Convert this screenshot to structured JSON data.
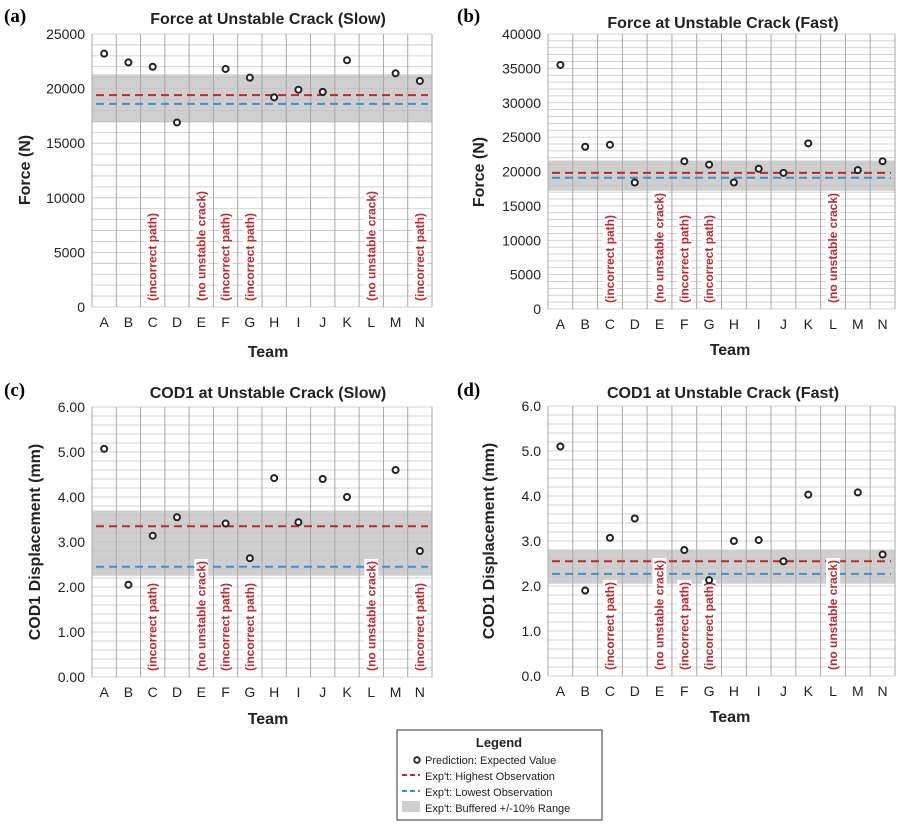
{
  "colors": {
    "highest": "#c0282d",
    "lowest": "#3f8fd2",
    "band": "#cfcfcf",
    "grid": "#c4c4c4",
    "marker": "#222222",
    "annotation": "#c0282d"
  },
  "chart_data": [
    {
      "label": "(a)",
      "type": "scatter",
      "title": "Force at Unstable Crack (Slow)",
      "xlabel": "Team",
      "ylabel": "Force (N)",
      "categories": [
        "A",
        "B",
        "C",
        "D",
        "E",
        "F",
        "G",
        "H",
        "I",
        "J",
        "K",
        "L",
        "M",
        "N"
      ],
      "ylim": [
        0,
        25000
      ],
      "yticks": [
        "0",
        "5000",
        "10000",
        "15000",
        "20000",
        "25000"
      ],
      "minor_step": 1000,
      "values": [
        23200,
        22400,
        22000,
        16900,
        null,
        21800,
        21000,
        19200,
        19900,
        19700,
        22600,
        null,
        21400,
        20700
      ],
      "highest": 19400,
      "lowest": 18600,
      "band": [
        16900,
        21300
      ],
      "annotations": [
        {
          "category": "C",
          "text": "(incorrect path)"
        },
        {
          "category": "E",
          "text": "(no unstable crack)"
        },
        {
          "category": "F",
          "text": "(incorrect path)"
        },
        {
          "category": "G",
          "text": "(incorrect path)"
        },
        {
          "category": "L",
          "text": "(no unstable crack)"
        },
        {
          "category": "N",
          "text": "(incorrect path)"
        }
      ]
    },
    {
      "label": "(b)",
      "type": "scatter",
      "title": "Force at Unstable Crack (Fast)",
      "xlabel": "Team",
      "ylabel": "Force (N)",
      "categories": [
        "A",
        "B",
        "C",
        "D",
        "E",
        "F",
        "G",
        "H",
        "I",
        "J",
        "K",
        "L",
        "M",
        "N"
      ],
      "ylim": [
        0,
        40000
      ],
      "yticks": [
        "0",
        "5000",
        "10000",
        "15000",
        "20000",
        "25000",
        "30000",
        "35000",
        "40000"
      ],
      "minor_step": 1000,
      "values": [
        35500,
        23600,
        23900,
        18400,
        null,
        21500,
        21000,
        18400,
        20400,
        19800,
        24100,
        null,
        20200,
        21500
      ],
      "highest": 19800,
      "lowest": 19100,
      "band": [
        17200,
        21600
      ],
      "annotations": [
        {
          "category": "C",
          "text": "(incorrect path)"
        },
        {
          "category": "E",
          "text": "(no unstable crack)"
        },
        {
          "category": "F",
          "text": "(incorrect path)"
        },
        {
          "category": "G",
          "text": "(incorrect path)"
        },
        {
          "category": "L",
          "text": "(no unstable crack)"
        }
      ]
    },
    {
      "label": "(c)",
      "type": "scatter",
      "title": "COD1 at Unstable Crack (Slow)",
      "xlabel": "Team",
      "ylabel": "COD1 Displacement (mm)",
      "categories": [
        "A",
        "B",
        "C",
        "D",
        "E",
        "F",
        "G",
        "H",
        "I",
        "J",
        "K",
        "L",
        "M",
        "N"
      ],
      "ylim": [
        0,
        6
      ],
      "yticks": [
        "0.00",
        "1.00",
        "2.00",
        "3.00",
        "4.00",
        "5.00",
        "6.00"
      ],
      "minor_step": 0.2,
      "values": [
        5.07,
        2.05,
        3.14,
        3.55,
        null,
        3.41,
        2.64,
        4.42,
        3.44,
        4.4,
        4.0,
        null,
        4.6,
        2.8
      ],
      "highest": 3.35,
      "lowest": 2.45,
      "band": [
        2.25,
        3.7
      ],
      "annotations": [
        {
          "category": "C",
          "text": "(incorrect path)"
        },
        {
          "category": "E",
          "text": "(no unstable crack)"
        },
        {
          "category": "F",
          "text": "(incorrect path)"
        },
        {
          "category": "G",
          "text": "(incorrect path)"
        },
        {
          "category": "L",
          "text": "(no unstable crack)"
        },
        {
          "category": "N",
          "text": "(incorrect path)"
        }
      ]
    },
    {
      "label": "(d)",
      "type": "scatter",
      "title": "COD1 at Unstable Crack (Fast)",
      "xlabel": "Team",
      "ylabel": "COD1 Displacement (mm)",
      "categories": [
        "A",
        "B",
        "C",
        "D",
        "E",
        "F",
        "G",
        "H",
        "I",
        "J",
        "K",
        "L",
        "M",
        "N"
      ],
      "ylim": [
        0,
        6
      ],
      "yticks": [
        "0.0",
        "1.0",
        "2.0",
        "3.0",
        "4.0",
        "5.0",
        "6.0"
      ],
      "minor_step": 0.2,
      "values": [
        5.1,
        1.9,
        3.07,
        3.5,
        null,
        2.8,
        2.13,
        3.0,
        3.02,
        2.55,
        4.03,
        null,
        4.08,
        2.7
      ],
      "highest": 2.55,
      "lowest": 2.27,
      "band": [
        2.05,
        2.8
      ],
      "annotations": [
        {
          "category": "C",
          "text": "(incorrect path)"
        },
        {
          "category": "E",
          "text": "(no unstable crack)"
        },
        {
          "category": "F",
          "text": "(incorrect path)"
        },
        {
          "category": "G",
          "text": "(incorrect path)"
        },
        {
          "category": "L",
          "text": "(no unstable crack)"
        }
      ]
    }
  ],
  "legend": {
    "title": "Legend",
    "items": [
      {
        "kind": "marker",
        "text": "Prediction: Expected Value"
      },
      {
        "kind": "highest",
        "text": "Exp't: Highest Observation"
      },
      {
        "kind": "lowest",
        "text": "Exp't: Lowest Observation"
      },
      {
        "kind": "band",
        "text": "Exp't: Buffered +/-10% Range"
      }
    ]
  }
}
